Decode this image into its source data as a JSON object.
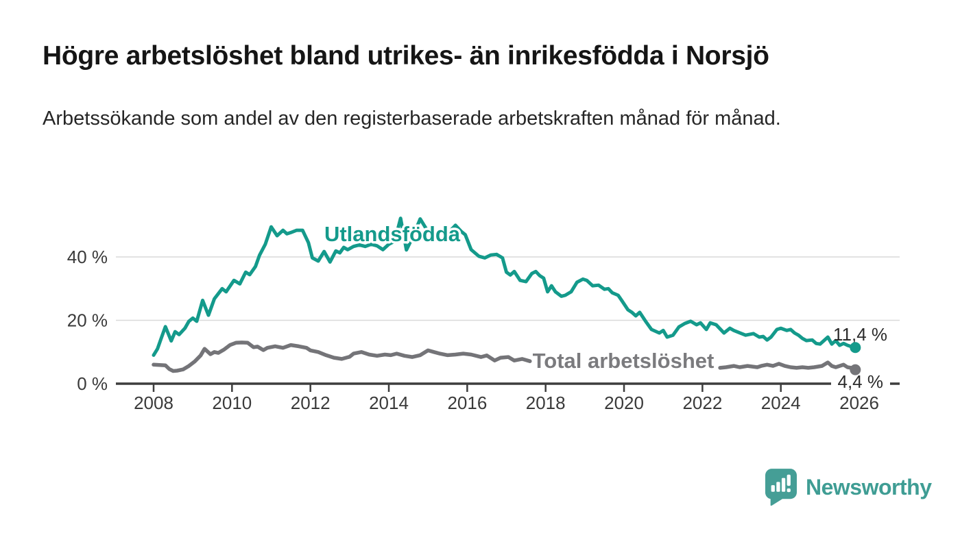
{
  "header": {
    "title": "Högre arbetslöshet bland utrikes- än inrikesfödda i Norsjö",
    "subtitle": "Arbetssökande som andel av den registerbaserade arbetskraften månad för månad."
  },
  "branding": {
    "logo_text": "Newsworthy",
    "logo_icon": "bar-chart-speech-bubble-icon",
    "logo_color": "#429d93"
  },
  "colors": {
    "foreign_born_line": "#149a8b",
    "total_line": "#747478",
    "axis": "#3d3d3d",
    "gridline": "#d9d9d9",
    "tick_text": "#3a3a3a"
  },
  "chart_data": {
    "type": "line",
    "title": "Högre arbetslöshet bland utrikes- än inrikesfödda i Norsjö",
    "subtitle": "Arbetssökande som andel av den registerbaserade arbetskraften månad för månad.",
    "xlabel": "",
    "ylabel": "",
    "unit": "%",
    "grid": "horizontal-only",
    "legend": "inline-labels-on-lines",
    "x_axis": {
      "ticks": [
        2008,
        2010,
        2012,
        2014,
        2016,
        2018,
        2020,
        2022,
        2024,
        2026
      ],
      "range": [
        2007.05,
        2027.05
      ]
    },
    "y_axis": {
      "ticks": [
        0,
        20,
        40
      ],
      "tick_labels": [
        "0 %",
        "20 %",
        "40 %"
      ],
      "range": [
        0,
        57
      ]
    },
    "series": [
      {
        "name": "Utlandsfödda",
        "color": "#149a8b",
        "end_label": "11,4 %",
        "end_value": 11.4,
        "points": [
          [
            2008.0,
            9.0
          ],
          [
            2008.1,
            11.0
          ],
          [
            2008.2,
            14.5
          ],
          [
            2008.3,
            18.0
          ],
          [
            2008.45,
            13.5
          ],
          [
            2008.55,
            16.4
          ],
          [
            2008.65,
            15.5
          ],
          [
            2008.8,
            17.5
          ],
          [
            2008.9,
            19.7
          ],
          [
            2009.0,
            20.7
          ],
          [
            2009.1,
            19.7
          ],
          [
            2009.25,
            26.3
          ],
          [
            2009.4,
            21.6
          ],
          [
            2009.55,
            26.8
          ],
          [
            2009.75,
            30.0
          ],
          [
            2009.85,
            29.0
          ],
          [
            2010.05,
            32.6
          ],
          [
            2010.2,
            31.5
          ],
          [
            2010.35,
            35.2
          ],
          [
            2010.45,
            34.4
          ],
          [
            2010.6,
            37.0
          ],
          [
            2010.7,
            40.5
          ],
          [
            2010.85,
            44.0
          ],
          [
            2011.0,
            49.5
          ],
          [
            2011.15,
            46.7
          ],
          [
            2011.3,
            48.4
          ],
          [
            2011.4,
            47.3
          ],
          [
            2011.5,
            47.7
          ],
          [
            2011.65,
            48.4
          ],
          [
            2011.8,
            48.4
          ],
          [
            2011.95,
            44.5
          ],
          [
            2012.05,
            39.7
          ],
          [
            2012.2,
            38.7
          ],
          [
            2012.35,
            41.7
          ],
          [
            2012.5,
            38.4
          ],
          [
            2012.65,
            41.9
          ],
          [
            2012.75,
            41.3
          ],
          [
            2012.85,
            43.0
          ],
          [
            2012.95,
            42.3
          ],
          [
            2013.1,
            43.3
          ],
          [
            2013.25,
            43.8
          ],
          [
            2013.4,
            43.3
          ],
          [
            2013.55,
            44.0
          ],
          [
            2013.7,
            43.5
          ],
          [
            2013.85,
            42.3
          ],
          [
            2014.0,
            44.0
          ],
          [
            2014.15,
            45.0
          ],
          [
            2014.3,
            52.2
          ],
          [
            2014.45,
            42.2
          ],
          [
            2014.6,
            46.0
          ],
          [
            2014.8,
            52.0
          ],
          [
            2014.95,
            49.0
          ],
          [
            2015.1,
            46.0
          ],
          [
            2015.25,
            45.0
          ],
          [
            2015.4,
            46.5
          ],
          [
            2015.55,
            48.0
          ],
          [
            2015.7,
            50.0
          ],
          [
            2015.85,
            48.0
          ],
          [
            2015.95,
            47.0
          ],
          [
            2016.1,
            42.3
          ],
          [
            2016.3,
            40.2
          ],
          [
            2016.45,
            39.7
          ],
          [
            2016.6,
            40.6
          ],
          [
            2016.75,
            40.8
          ],
          [
            2016.9,
            39.7
          ],
          [
            2017.0,
            35.2
          ],
          [
            2017.1,
            34.3
          ],
          [
            2017.2,
            35.4
          ],
          [
            2017.35,
            32.6
          ],
          [
            2017.5,
            32.2
          ],
          [
            2017.65,
            34.8
          ],
          [
            2017.75,
            35.4
          ],
          [
            2017.85,
            34.1
          ],
          [
            2017.95,
            33.3
          ],
          [
            2018.05,
            29.0
          ],
          [
            2018.15,
            30.9
          ],
          [
            2018.25,
            29.0
          ],
          [
            2018.4,
            27.6
          ],
          [
            2018.5,
            27.9
          ],
          [
            2018.65,
            29.0
          ],
          [
            2018.8,
            32.0
          ],
          [
            2018.95,
            33.0
          ],
          [
            2019.05,
            32.6
          ],
          [
            2019.2,
            30.9
          ],
          [
            2019.35,
            31.1
          ],
          [
            2019.5,
            29.8
          ],
          [
            2019.6,
            30.0
          ],
          [
            2019.7,
            28.7
          ],
          [
            2019.85,
            27.9
          ],
          [
            2019.95,
            26.1
          ],
          [
            2020.1,
            23.3
          ],
          [
            2020.2,
            22.5
          ],
          [
            2020.3,
            21.4
          ],
          [
            2020.4,
            22.5
          ],
          [
            2020.55,
            19.7
          ],
          [
            2020.7,
            17.1
          ],
          [
            2020.9,
            16.0
          ],
          [
            2021.0,
            16.8
          ],
          [
            2021.1,
            14.7
          ],
          [
            2021.25,
            15.3
          ],
          [
            2021.4,
            17.9
          ],
          [
            2021.55,
            19.0
          ],
          [
            2021.7,
            19.7
          ],
          [
            2021.85,
            18.6
          ],
          [
            2021.95,
            19.2
          ],
          [
            2022.1,
            17.1
          ],
          [
            2022.2,
            19.2
          ],
          [
            2022.35,
            18.6
          ],
          [
            2022.55,
            16.0
          ],
          [
            2022.7,
            17.5
          ],
          [
            2022.8,
            16.8
          ],
          [
            2023.0,
            15.8
          ],
          [
            2023.1,
            15.3
          ],
          [
            2023.3,
            15.8
          ],
          [
            2023.45,
            14.7
          ],
          [
            2023.55,
            14.9
          ],
          [
            2023.65,
            13.8
          ],
          [
            2023.75,
            14.7
          ],
          [
            2023.9,
            17.1
          ],
          [
            2024.0,
            17.5
          ],
          [
            2024.15,
            16.8
          ],
          [
            2024.25,
            17.1
          ],
          [
            2024.35,
            16.0
          ],
          [
            2024.45,
            15.3
          ],
          [
            2024.55,
            14.3
          ],
          [
            2024.65,
            13.6
          ],
          [
            2024.8,
            13.8
          ],
          [
            2024.9,
            12.7
          ],
          [
            2025.0,
            12.5
          ],
          [
            2025.1,
            13.6
          ],
          [
            2025.2,
            14.7
          ],
          [
            2025.3,
            12.5
          ],
          [
            2025.4,
            13.6
          ],
          [
            2025.5,
            12.1
          ],
          [
            2025.6,
            12.7
          ],
          [
            2025.7,
            12.1
          ],
          [
            2025.8,
            11.7
          ],
          [
            2025.9,
            11.4
          ]
        ]
      },
      {
        "name": "Total arbetslöshet",
        "color": "#747478",
        "end_label": "4,4 %",
        "end_value": 4.4,
        "label_gap_years": [
          2017.65,
          2022.4
        ],
        "points": [
          [
            2008.0,
            6.0
          ],
          [
            2008.15,
            5.9
          ],
          [
            2008.3,
            5.8
          ],
          [
            2008.4,
            4.6
          ],
          [
            2008.5,
            4.0
          ],
          [
            2008.6,
            4.1
          ],
          [
            2008.75,
            4.5
          ],
          [
            2008.9,
            5.6
          ],
          [
            2009.05,
            7.0
          ],
          [
            2009.2,
            8.9
          ],
          [
            2009.3,
            11.0
          ],
          [
            2009.45,
            9.3
          ],
          [
            2009.55,
            10.0
          ],
          [
            2009.65,
            9.7
          ],
          [
            2009.8,
            10.8
          ],
          [
            2009.95,
            12.2
          ],
          [
            2010.1,
            12.9
          ],
          [
            2010.25,
            13.0
          ],
          [
            2010.4,
            12.9
          ],
          [
            2010.55,
            11.5
          ],
          [
            2010.65,
            11.7
          ],
          [
            2010.8,
            10.6
          ],
          [
            2010.9,
            11.3
          ],
          [
            2011.1,
            11.8
          ],
          [
            2011.3,
            11.3
          ],
          [
            2011.5,
            12.2
          ],
          [
            2011.7,
            11.8
          ],
          [
            2011.9,
            11.3
          ],
          [
            2012.0,
            10.5
          ],
          [
            2012.2,
            10.0
          ],
          [
            2012.4,
            9.0
          ],
          [
            2012.6,
            8.2
          ],
          [
            2012.8,
            7.8
          ],
          [
            2013.0,
            8.5
          ],
          [
            2013.1,
            9.5
          ],
          [
            2013.3,
            10.0
          ],
          [
            2013.5,
            9.2
          ],
          [
            2013.7,
            8.8
          ],
          [
            2013.9,
            9.2
          ],
          [
            2014.05,
            9.0
          ],
          [
            2014.2,
            9.5
          ],
          [
            2014.4,
            8.8
          ],
          [
            2014.6,
            8.4
          ],
          [
            2014.8,
            9.0
          ],
          [
            2015.0,
            10.5
          ],
          [
            2015.15,
            10.0
          ],
          [
            2015.3,
            9.5
          ],
          [
            2015.5,
            9.0
          ],
          [
            2015.7,
            9.2
          ],
          [
            2015.9,
            9.5
          ],
          [
            2016.1,
            9.2
          ],
          [
            2016.35,
            8.4
          ],
          [
            2016.5,
            8.9
          ],
          [
            2016.7,
            7.3
          ],
          [
            2016.85,
            8.2
          ],
          [
            2017.05,
            8.4
          ],
          [
            2017.2,
            7.3
          ],
          [
            2017.4,
            7.8
          ],
          [
            2017.6,
            7.1
          ],
          [
            2017.8,
            7.3
          ],
          [
            2018.0,
            7.6
          ],
          [
            2018.3,
            8.0
          ],
          [
            2018.6,
            8.3
          ],
          [
            2018.9,
            8.6
          ],
          [
            2019.2,
            8.4
          ],
          [
            2019.5,
            8.0
          ],
          [
            2019.8,
            8.3
          ],
          [
            2020.1,
            9.0
          ],
          [
            2020.4,
            9.4
          ],
          [
            2020.7,
            9.0
          ],
          [
            2021.0,
            8.3
          ],
          [
            2021.3,
            7.4
          ],
          [
            2021.6,
            6.5
          ],
          [
            2021.9,
            5.8
          ],
          [
            2022.2,
            5.2
          ],
          [
            2022.45,
            5.0
          ],
          [
            2022.6,
            5.2
          ],
          [
            2022.8,
            5.6
          ],
          [
            2022.95,
            5.2
          ],
          [
            2023.15,
            5.6
          ],
          [
            2023.4,
            5.2
          ],
          [
            2023.5,
            5.6
          ],
          [
            2023.65,
            6.0
          ],
          [
            2023.8,
            5.6
          ],
          [
            2023.95,
            6.3
          ],
          [
            2024.1,
            5.6
          ],
          [
            2024.25,
            5.2
          ],
          [
            2024.4,
            5.0
          ],
          [
            2024.55,
            5.2
          ],
          [
            2024.7,
            5.0
          ],
          [
            2024.85,
            5.2
          ],
          [
            2025.05,
            5.6
          ],
          [
            2025.2,
            6.7
          ],
          [
            2025.3,
            5.6
          ],
          [
            2025.4,
            5.2
          ],
          [
            2025.6,
            6.0
          ],
          [
            2025.7,
            5.2
          ],
          [
            2025.8,
            5.0
          ],
          [
            2025.9,
            4.4
          ]
        ]
      }
    ]
  }
}
